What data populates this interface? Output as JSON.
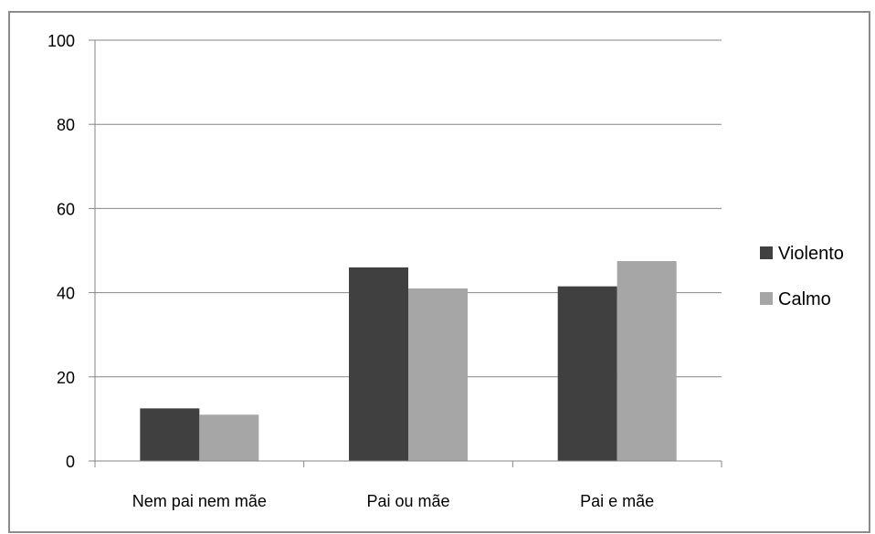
{
  "chart_data": {
    "type": "bar",
    "categories": [
      "Nem pai nem mãe",
      "Pai ou mãe",
      "Pai e mãe"
    ],
    "series": [
      {
        "name": "Violento",
        "color": "#404040",
        "values": [
          12.5,
          46,
          41.5
        ]
      },
      {
        "name": "Calmo",
        "color": "#a6a6a6",
        "values": [
          11,
          41,
          47.5
        ]
      }
    ],
    "y_ticks": [
      0,
      20,
      40,
      60,
      80,
      100
    ],
    "ylim": [
      0,
      100
    ],
    "grid": true,
    "legend_position": "right",
    "gridline_color": "#868686",
    "axis_color": "#868686"
  }
}
